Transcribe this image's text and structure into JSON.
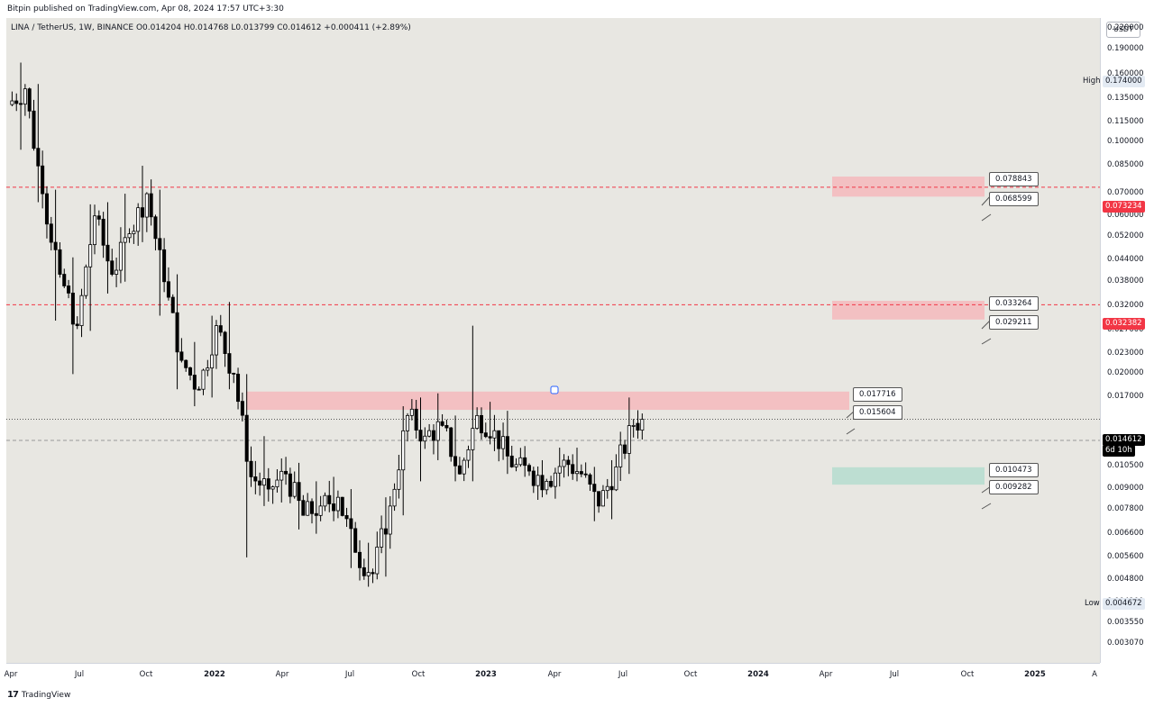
{
  "header": {
    "publish_text": "Bitpin published on TradingView.com, Apr 08, 2024 17:57 UTC+3:30",
    "symbol_line": "LINA / TetherUS, 1W, BINANCE  O0.014204  H0.014768  L0.013799  C0.014612  +0.000411 (+2.89%)"
  },
  "footer": {
    "logo_glyph": "17",
    "brand": "TradingView"
  },
  "price_axis": {
    "currency": "USDT",
    "ticks": [
      "0.220000",
      "0.190000",
      "0.160000",
      "0.135000",
      "0.115000",
      "0.100000",
      "0.085000",
      "0.070000",
      "0.060000",
      "0.052000",
      "0.044000",
      "0.038000",
      "0.032000",
      "0.027000",
      "0.023000",
      "0.020000",
      "0.017000",
      "0.012621",
      "0.010500",
      "0.009000",
      "0.007800",
      "0.006600",
      "0.005600",
      "0.004800",
      "0.004100",
      "0.003550",
      "0.003070"
    ]
  },
  "time_axis": {
    "ticks": [
      {
        "label": "Apr",
        "year": false
      },
      {
        "label": "Jul",
        "year": false
      },
      {
        "label": "Oct",
        "year": false
      },
      {
        "label": "2022",
        "year": true
      },
      {
        "label": "Apr",
        "year": false
      },
      {
        "label": "Jul",
        "year": false
      },
      {
        "label": "Oct",
        "year": false
      },
      {
        "label": "2023",
        "year": true
      },
      {
        "label": "Apr",
        "year": false
      },
      {
        "label": "Jul",
        "year": false
      },
      {
        "label": "Oct",
        "year": false
      },
      {
        "label": "2024",
        "year": true
      },
      {
        "label": "Apr",
        "year": false
      },
      {
        "label": "Jul",
        "year": false
      },
      {
        "label": "Oct",
        "year": false
      },
      {
        "label": "2025",
        "year": true
      },
      {
        "label": "A",
        "year": false
      }
    ]
  },
  "labels": {
    "high_tag": "High",
    "high_value": "0.174000",
    "low_tag": "Low",
    "low_value": "0.004672",
    "level_upper": "0.073234",
    "level_mid": "0.032382",
    "current_price": "0.014612",
    "countdown": "6d 10h"
  },
  "callouts": [
    "0.078843",
    "0.068599",
    "0.033264",
    "0.029211",
    "0.017716",
    "0.015604",
    "0.010473",
    "0.009282"
  ],
  "colors": {
    "up": "#ffffff",
    "down": "#000000",
    "wick": "#000000",
    "resistance_zone": "#f4b8bc",
    "support_zone": "#b5dccf",
    "level_line": "#f23645",
    "background": "#e8e7e2"
  },
  "chart_data": {
    "type": "candlestick",
    "interval": "1W",
    "y_scale": "log",
    "ylim": [
      0.00307,
      0.22
    ],
    "x_range": [
      "2021-04",
      "2025-04"
    ],
    "ohlc_approx": [
      {
        "date": "2021-04",
        "o": 0.13,
        "h": 0.174,
        "l": 0.095,
        "c": 0.145
      },
      {
        "date": "2021-05",
        "o": 0.145,
        "h": 0.15,
        "l": 0.066,
        "c": 0.07
      },
      {
        "date": "2021-06",
        "o": 0.07,
        "h": 0.072,
        "l": 0.029,
        "c": 0.04
      },
      {
        "date": "2021-07",
        "o": 0.04,
        "h": 0.045,
        "l": 0.02,
        "c": 0.028
      },
      {
        "date": "2021-08",
        "o": 0.028,
        "h": 0.065,
        "l": 0.027,
        "c": 0.06
      },
      {
        "date": "2021-09",
        "o": 0.06,
        "h": 0.066,
        "l": 0.035,
        "c": 0.04
      },
      {
        "date": "2021-10",
        "o": 0.04,
        "h": 0.07,
        "l": 0.038,
        "c": 0.053
      },
      {
        "date": "2021-11",
        "o": 0.053,
        "h": 0.085,
        "l": 0.05,
        "c": 0.07
      },
      {
        "date": "2021-12",
        "o": 0.07,
        "h": 0.072,
        "l": 0.03,
        "c": 0.038
      },
      {
        "date": "2022-01",
        "o": 0.038,
        "h": 0.04,
        "l": 0.018,
        "c": 0.022
      },
      {
        "date": "2022-02",
        "o": 0.022,
        "h": 0.025,
        "l": 0.016,
        "c": 0.018
      },
      {
        "date": "2022-03",
        "o": 0.018,
        "h": 0.03,
        "l": 0.017,
        "c": 0.028
      },
      {
        "date": "2022-04",
        "o": 0.028,
        "h": 0.033,
        "l": 0.018,
        "c": 0.02
      },
      {
        "date": "2022-05",
        "o": 0.02,
        "h": 0.02,
        "l": 0.0056,
        "c": 0.0098
      },
      {
        "date": "2022-06",
        "o": 0.0098,
        "h": 0.013,
        "l": 0.008,
        "c": 0.009
      },
      {
        "date": "2022-07",
        "o": 0.009,
        "h": 0.011,
        "l": 0.0082,
        "c": 0.01
      },
      {
        "date": "2022-08",
        "o": 0.01,
        "h": 0.0108,
        "l": 0.0068,
        "c": 0.0075
      },
      {
        "date": "2022-09",
        "o": 0.0075,
        "h": 0.0095,
        "l": 0.0066,
        "c": 0.008
      },
      {
        "date": "2022-10",
        "o": 0.008,
        "h": 0.0098,
        "l": 0.0072,
        "c": 0.0085
      },
      {
        "date": "2022-11",
        "o": 0.0085,
        "h": 0.009,
        "l": 0.0052,
        "c": 0.0058
      },
      {
        "date": "2022-12",
        "o": 0.0058,
        "h": 0.0062,
        "l": 0.0047,
        "c": 0.005
      },
      {
        "date": "2023-01",
        "o": 0.005,
        "h": 0.0085,
        "l": 0.0049,
        "c": 0.008
      },
      {
        "date": "2023-02",
        "o": 0.008,
        "h": 0.016,
        "l": 0.0075,
        "c": 0.015
      },
      {
        "date": "2023-03",
        "o": 0.015,
        "h": 0.017,
        "l": 0.0095,
        "c": 0.013
      },
      {
        "date": "2023-04",
        "o": 0.013,
        "h": 0.0175,
        "l": 0.011,
        "c": 0.014
      },
      {
        "date": "2023-05",
        "o": 0.014,
        "h": 0.015,
        "l": 0.0095,
        "c": 0.01
      },
      {
        "date": "2023-06",
        "o": 0.01,
        "h": 0.028,
        "l": 0.0095,
        "c": 0.015
      },
      {
        "date": "2023-07",
        "o": 0.015,
        "h": 0.0165,
        "l": 0.0125,
        "c": 0.0135
      },
      {
        "date": "2023-08",
        "o": 0.0135,
        "h": 0.0155,
        "l": 0.01,
        "c": 0.0105
      },
      {
        "date": "2023-09",
        "o": 0.0105,
        "h": 0.0115,
        "l": 0.0098,
        "c": 0.0102
      },
      {
        "date": "2023-10",
        "o": 0.0102,
        "h": 0.011,
        "l": 0.0085,
        "c": 0.0095
      },
      {
        "date": "2023-11",
        "o": 0.0095,
        "h": 0.012,
        "l": 0.0092,
        "c": 0.011
      },
      {
        "date": "2023-12",
        "o": 0.011,
        "h": 0.012,
        "l": 0.0095,
        "c": 0.01
      },
      {
        "date": "2024-01",
        "o": 0.01,
        "h": 0.0105,
        "l": 0.0072,
        "c": 0.008
      },
      {
        "date": "2024-02",
        "o": 0.008,
        "h": 0.011,
        "l": 0.0073,
        "c": 0.0105
      },
      {
        "date": "2024-03",
        "o": 0.0105,
        "h": 0.017,
        "l": 0.01,
        "c": 0.014
      },
      {
        "date": "2024-04",
        "o": 0.014204,
        "h": 0.014768,
        "l": 0.013799,
        "c": 0.014612
      }
    ],
    "zones": [
      {
        "kind": "resistance",
        "low": 0.068599,
        "high": 0.078843
      },
      {
        "kind": "resistance",
        "low": 0.029211,
        "high": 0.033264
      },
      {
        "kind": "resistance",
        "low": 0.015604,
        "high": 0.017716
      },
      {
        "kind": "support",
        "low": 0.009282,
        "high": 0.010473
      }
    ],
    "horizontal_levels": [
      0.073234,
      0.032382,
      0.014612,
      0.012621
    ],
    "high": 0.174,
    "low": 0.004672
  }
}
